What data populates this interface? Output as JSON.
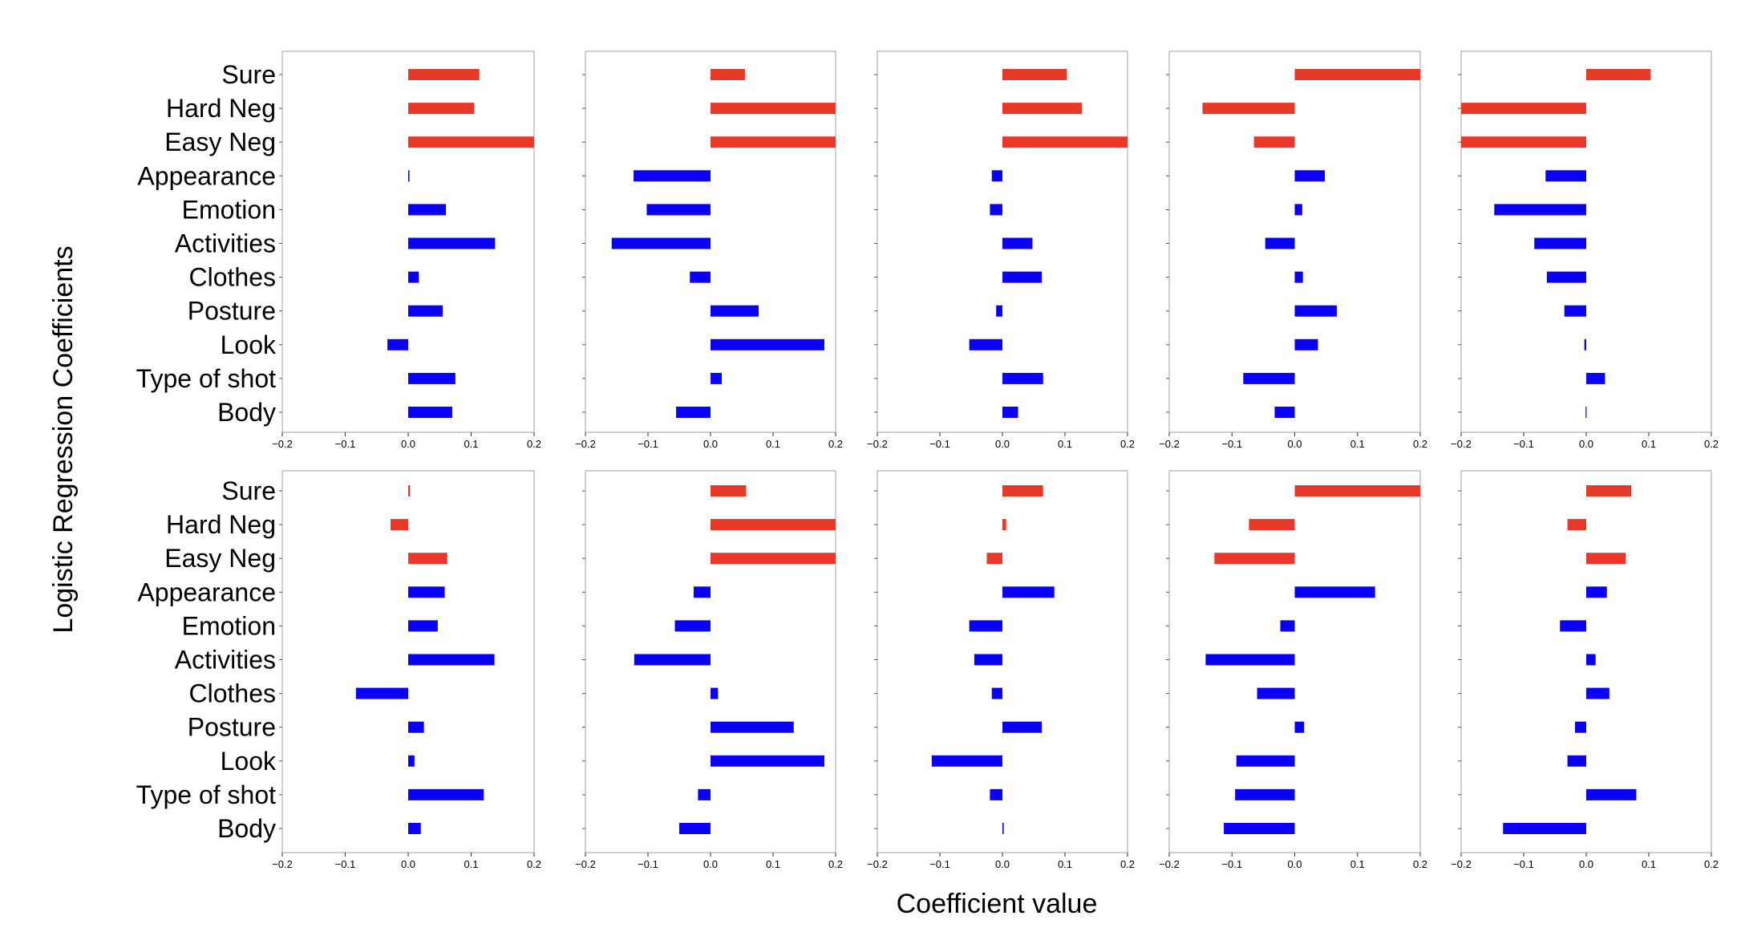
{
  "chart_data": {
    "type": "bar",
    "orientation": "horizontal",
    "layout": "2 rows x 5 columns of panels",
    "xlabel": "Coefficient value",
    "ylabel": "Logistic Regression Coefficients",
    "categories": [
      "Sure",
      "Hard Neg",
      "Easy Neg",
      "Appearance",
      "Emotion",
      "Activities",
      "Clothes",
      "Posture",
      "Look",
      "Type of shot",
      "Body"
    ],
    "xlim": [
      -0.2,
      0.2
    ],
    "xticks": [
      -0.2,
      -0.1,
      0.0,
      0.1,
      0.2
    ],
    "xtick_labels": [
      "−0.2",
      "−0.1",
      "0.0",
      "0.1",
      "0.2"
    ],
    "colors": {
      "red": "#e8382a",
      "blue": "#0a00f5"
    },
    "bar_colors": [
      "red",
      "red",
      "red",
      "blue",
      "blue",
      "blue",
      "blue",
      "blue",
      "blue",
      "blue",
      "blue"
    ],
    "panels": [
      {
        "row": 1,
        "col": 1,
        "values": [
          0.113,
          0.105,
          0.2,
          0.002,
          0.06,
          0.138,
          0.017,
          0.055,
          -0.033,
          0.075,
          0.07
        ]
      },
      {
        "row": 1,
        "col": 2,
        "values": [
          0.055,
          0.2,
          0.2,
          -0.123,
          -0.102,
          -0.158,
          -0.033,
          0.077,
          0.182,
          0.018,
          -0.055
        ]
      },
      {
        "row": 1,
        "col": 3,
        "values": [
          0.103,
          0.127,
          0.2,
          -0.017,
          -0.02,
          0.048,
          0.063,
          -0.01,
          -0.053,
          0.065,
          0.025
        ]
      },
      {
        "row": 1,
        "col": 4,
        "values": [
          0.2,
          -0.147,
          -0.065,
          0.048,
          0.012,
          -0.047,
          0.013,
          0.067,
          0.037,
          -0.082,
          -0.032
        ]
      },
      {
        "row": 1,
        "col": 5,
        "values": [
          0.103,
          -0.2,
          -0.2,
          -0.065,
          -0.147,
          -0.083,
          -0.063,
          -0.035,
          -0.003,
          0.03,
          -0.001
        ]
      },
      {
        "row": 2,
        "col": 1,
        "values": [
          0.003,
          -0.028,
          0.062,
          0.058,
          0.047,
          0.137,
          -0.083,
          0.025,
          0.01,
          0.12,
          0.02
        ]
      },
      {
        "row": 2,
        "col": 2,
        "values": [
          0.057,
          0.2,
          0.2,
          -0.027,
          -0.057,
          -0.122,
          0.012,
          0.133,
          0.182,
          -0.02,
          -0.05
        ]
      },
      {
        "row": 2,
        "col": 3,
        "values": [
          0.065,
          0.006,
          -0.025,
          0.083,
          -0.053,
          -0.045,
          -0.017,
          0.063,
          -0.113,
          -0.02,
          0.002
        ]
      },
      {
        "row": 2,
        "col": 4,
        "values": [
          0.2,
          -0.073,
          -0.128,
          0.128,
          -0.023,
          -0.142,
          -0.06,
          0.015,
          -0.093,
          -0.095,
          -0.113
        ]
      },
      {
        "row": 2,
        "col": 5,
        "values": [
          0.072,
          -0.03,
          0.063,
          0.033,
          -0.042,
          0.015,
          0.037,
          -0.018,
          -0.03,
          0.08,
          -0.133
        ]
      }
    ]
  }
}
